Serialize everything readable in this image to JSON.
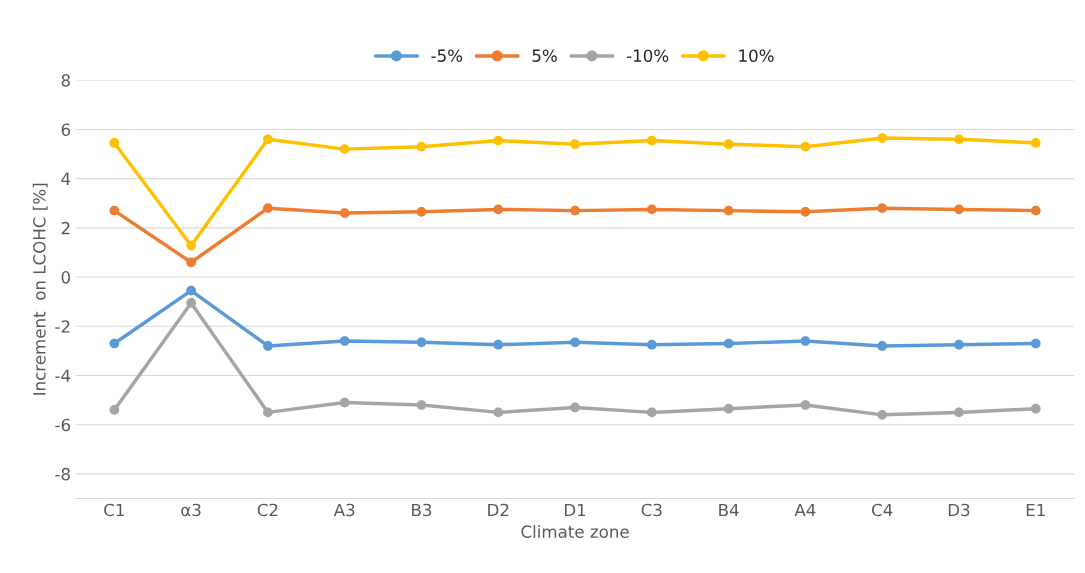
{
  "chart_data": {
    "type": "line",
    "xlabel": "Climate zone",
    "ylabel": "Increment  on LCOHC [%]",
    "categories": [
      "C1",
      "α3",
      "C2",
      "A3",
      "B3",
      "D2",
      "D1",
      "C3",
      "B4",
      "A4",
      "C4",
      "D3",
      "E1"
    ],
    "series": [
      {
        "name": "-5%",
        "color": "#5b9bd5",
        "values": [
          -2.7,
          -0.55,
          -2.8,
          -2.6,
          -2.65,
          -2.75,
          -2.65,
          -2.75,
          -2.7,
          -2.6,
          -2.8,
          -2.75,
          -2.7
        ]
      },
      {
        "name": "5%",
        "color": "#ed7d31",
        "values": [
          2.7,
          0.6,
          2.8,
          2.6,
          2.65,
          2.75,
          2.7,
          2.75,
          2.7,
          2.65,
          2.8,
          2.75,
          2.7
        ]
      },
      {
        "name": "-10%",
        "color": "#a5a5a5",
        "values": [
          -5.4,
          -1.05,
          -5.5,
          -5.1,
          -5.2,
          -5.5,
          -5.3,
          -5.5,
          -5.35,
          -5.2,
          -5.6,
          -5.5,
          -5.35
        ]
      },
      {
        "name": "10%",
        "color": "#ffc000",
        "values": [
          5.45,
          1.28,
          5.6,
          5.2,
          5.3,
          5.55,
          5.4,
          5.55,
          5.4,
          5.3,
          5.65,
          5.6,
          5.45
        ]
      }
    ],
    "ylim": [
      -9,
      8
    ],
    "yticks": [
      -8,
      -6,
      -4,
      -2,
      0,
      2,
      4,
      6,
      8
    ],
    "grid": "y",
    "legend": "top",
    "marker": "circle",
    "line_style": "solid"
  }
}
